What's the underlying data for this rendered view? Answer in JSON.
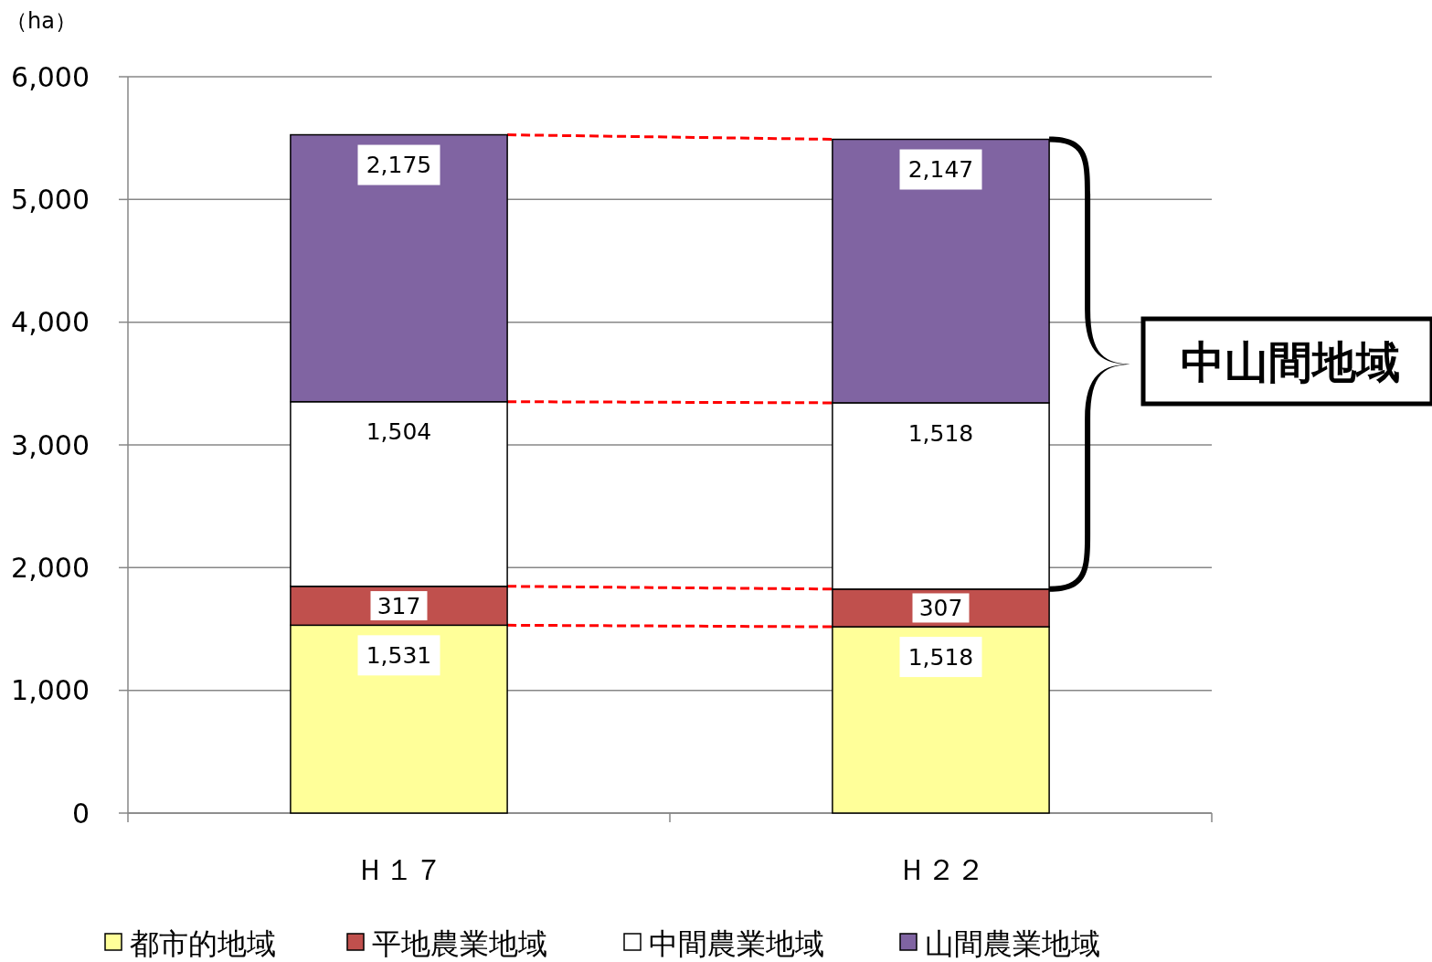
{
  "chart_data": {
    "type": "bar",
    "stacked": true,
    "ylabel": "（ha）",
    "categories": [
      "Ｈ１７",
      "Ｈ２２"
    ],
    "series": [
      {
        "name": "都市的地域",
        "color": "#ffff99",
        "values": [
          1531,
          1518
        ],
        "value_labels": [
          "1,531",
          "1,518"
        ]
      },
      {
        "name": "平地農業地域",
        "color": "#c0504d",
        "values": [
          317,
          307
        ],
        "value_labels": [
          "317",
          "307"
        ]
      },
      {
        "name": "中間農業地域",
        "color": "#ffffff",
        "values": [
          1504,
          1518
        ],
        "value_labels": [
          "1,504",
          "1,518"
        ]
      },
      {
        "name": "山間農業地域",
        "color": "#8064a2",
        "values": [
          2175,
          2147
        ],
        "value_labels": [
          "2,175",
          "2,147"
        ]
      }
    ],
    "ylim": [
      0,
      6000
    ],
    "yticks": [
      0,
      {
        "value": 1000,
        "label": "1,000"
      },
      {
        "value": 2000,
        "label": "2,000"
      },
      {
        "value": 3000,
        "label": "3,000"
      },
      {
        "value": 4000,
        "label": "4,000"
      },
      {
        "value": 5000,
        "label": "5,000"
      },
      {
        "value": 6000,
        "label": "6,000"
      }
    ],
    "grid": "y",
    "legend": "bottom",
    "annotations": [
      "中山間地域"
    ]
  }
}
